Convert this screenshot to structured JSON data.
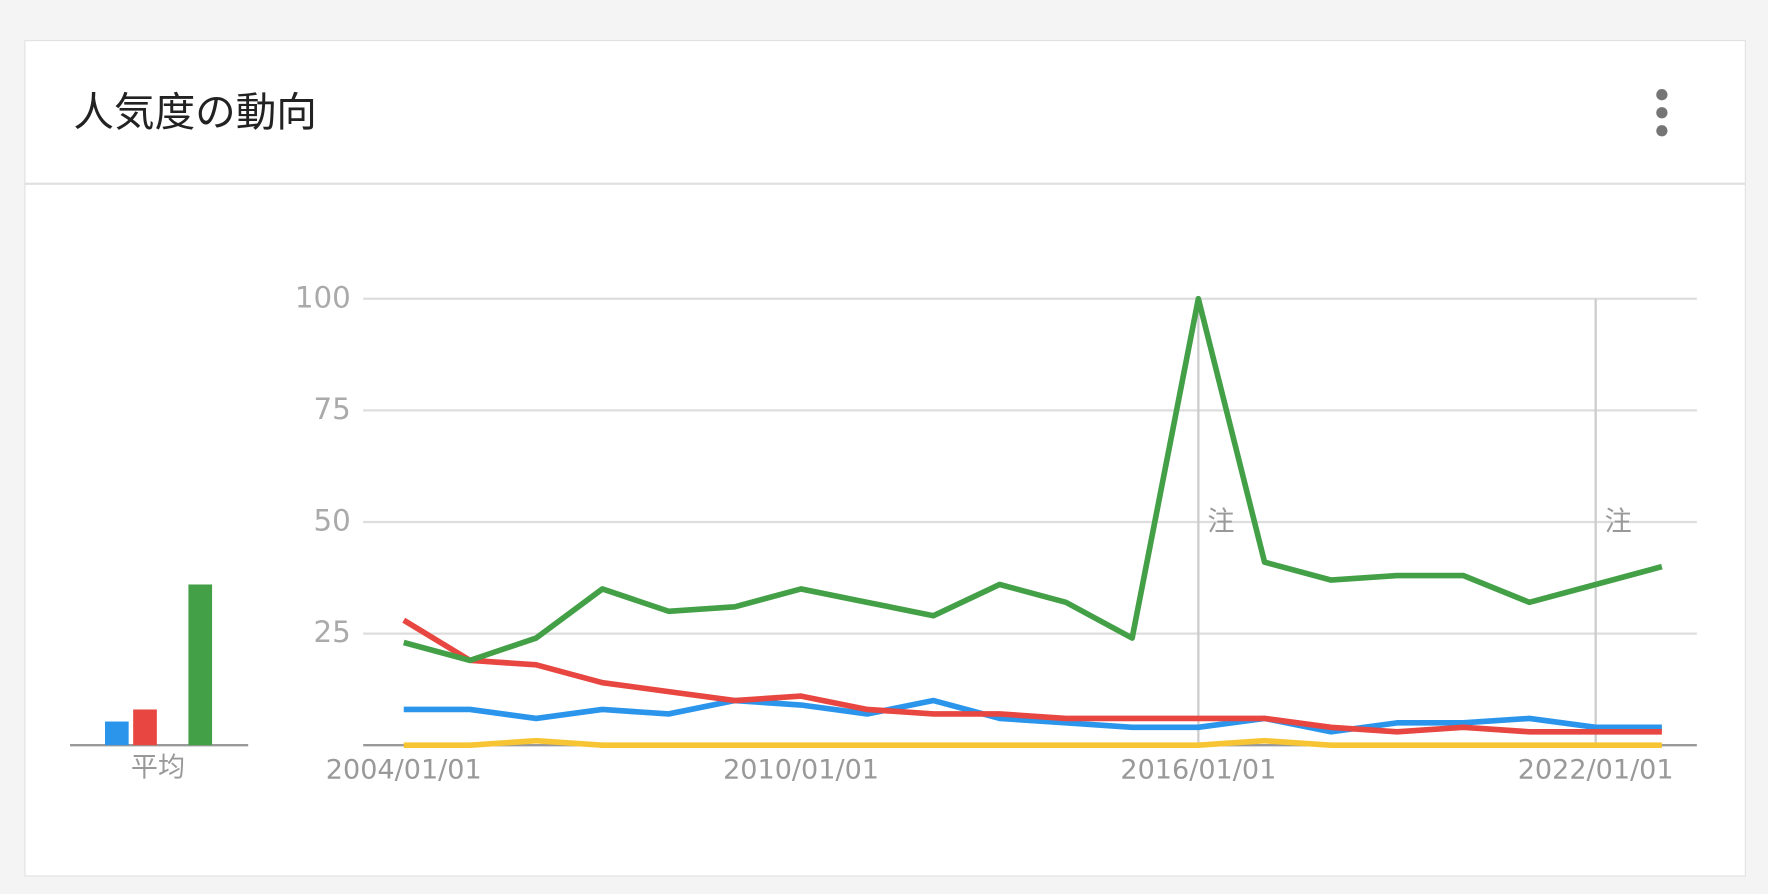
{
  "header": {
    "title": "人気度の動向"
  },
  "chart_data": [
    {
      "type": "line",
      "x": [
        "2004/01/01",
        "2005/01/01",
        "2006/01/01",
        "2007/01/01",
        "2008/01/01",
        "2009/01/01",
        "2010/01/01",
        "2011/01/01",
        "2012/01/01",
        "2013/01/01",
        "2014/01/01",
        "2015/01/01",
        "2016/01/01",
        "2017/01/01",
        "2018/01/01",
        "2019/01/01",
        "2020/01/01",
        "2021/01/01",
        "2022/01/01",
        "2023/01/01"
      ],
      "xticks": [
        "2004/01/01",
        "2010/01/01",
        "2016/01/01",
        "2022/01/01"
      ],
      "ylim": [
        0,
        100
      ],
      "yticks": [
        25,
        50,
        75,
        100
      ],
      "grid": true,
      "series": [
        {
          "color": "#2b95ec",
          "values": [
            8,
            8,
            6,
            8,
            7,
            10,
            9,
            7,
            10,
            6,
            5,
            4,
            4,
            6,
            3,
            5,
            5,
            6,
            4,
            4
          ]
        },
        {
          "color": "#e84640",
          "values": [
            28,
            19,
            18,
            14,
            12,
            10,
            11,
            8,
            7,
            7,
            6,
            6,
            6,
            6,
            4,
            3,
            4,
            3,
            3,
            3
          ]
        },
        {
          "color": "#f7c534",
          "values": [
            0,
            0,
            1,
            0,
            0,
            0,
            0,
            0,
            0,
            0,
            0,
            0,
            0,
            1,
            0,
            0,
            0,
            0,
            0,
            0
          ]
        },
        {
          "color": "#43a047",
          "values": [
            23,
            19,
            24,
            35,
            30,
            31,
            35,
            32,
            29,
            36,
            32,
            24,
            100,
            41,
            37,
            38,
            38,
            32,
            36,
            40
          ]
        }
      ],
      "annotations": [
        {
          "x": "2016/01/01",
          "text": "注"
        },
        {
          "x": "2022/01/01",
          "text": "注"
        }
      ]
    },
    {
      "type": "bar",
      "label": "平均",
      "ylim": [
        0,
        100
      ],
      "values": [
        5.3,
        8,
        0,
        36
      ],
      "colors": [
        "#2b95ec",
        "#e84640",
        "#f7c534",
        "#43a047"
      ]
    }
  ]
}
